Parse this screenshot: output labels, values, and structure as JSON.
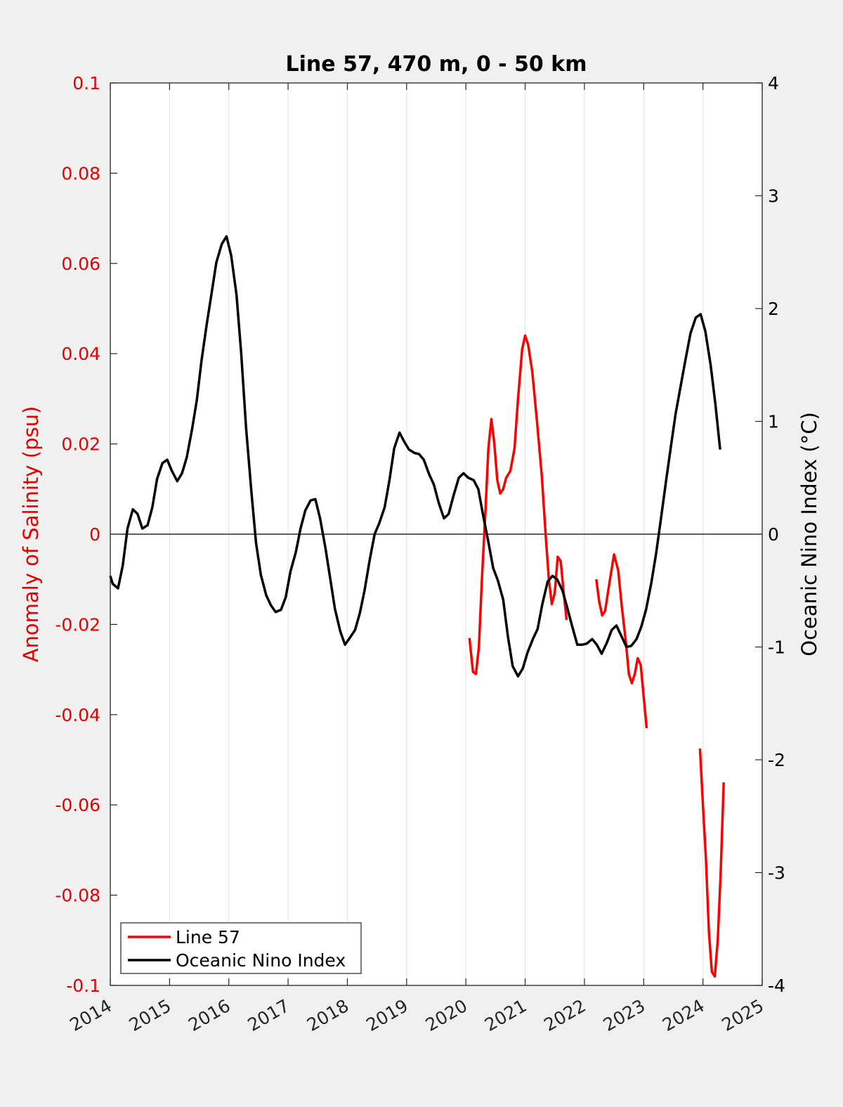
{
  "chart_data": {
    "type": "line",
    "title": "Line 57, 470 m, 0 - 50 km",
    "xlim": [
      2014,
      2025
    ],
    "x_ticks": [
      "2014",
      "2015",
      "2016",
      "2017",
      "2018",
      "2019",
      "2020",
      "2021",
      "2022",
      "2023",
      "2024",
      "2025"
    ],
    "grid": "vertical",
    "ylabel_left": "Anomaly of Salinity (psu)",
    "ylim_left": [
      -0.1,
      0.1
    ],
    "y_ticks_left": [
      "0.1",
      "0.08",
      "0.06",
      "0.04",
      "0.02",
      "0",
      "-0.02",
      "-0.04",
      "-0.06",
      "-0.08",
      "-0.1"
    ],
    "ylabel_right": "Oceanic Nino Index (°C)",
    "ylim_right": [
      -4,
      4
    ],
    "y_ticks_right": [
      "4",
      "3",
      "2",
      "1",
      "0",
      "-1",
      "-2",
      "-3",
      "-4"
    ],
    "legend_position": "bottom-left",
    "colors": {
      "salinity": "#ff0000",
      "oni": "#000000"
    },
    "series": [
      {
        "name": "Line 57",
        "axis": "left",
        "segments": [
          [
            [
              2020.06,
              -0.023
            ],
            [
              2020.12,
              -0.0305
            ],
            [
              2020.17,
              -0.031
            ],
            [
              2020.22,
              -0.025
            ],
            [
              2020.27,
              -0.01
            ],
            [
              2020.33,
              0.005
            ],
            [
              2020.38,
              0.019
            ],
            [
              2020.43,
              0.0255
            ],
            [
              2020.48,
              0.02
            ],
            [
              2020.53,
              0.012
            ],
            [
              2020.58,
              0.009
            ],
            [
              2020.63,
              0.01
            ],
            [
              2020.68,
              0.0125
            ],
            [
              2020.75,
              0.014
            ],
            [
              2020.82,
              0.019
            ],
            [
              2020.88,
              0.03
            ],
            [
              2020.95,
              0.041
            ],
            [
              2021.0,
              0.044
            ],
            [
              2021.05,
              0.042
            ],
            [
              2021.12,
              0.036
            ],
            [
              2021.2,
              0.025
            ],
            [
              2021.28,
              0.013
            ],
            [
              2021.35,
              -0.001
            ],
            [
              2021.4,
              -0.01
            ],
            [
              2021.45,
              -0.0155
            ],
            [
              2021.5,
              -0.013
            ],
            [
              2021.55,
              -0.005
            ],
            [
              2021.6,
              -0.006
            ],
            [
              2021.65,
              -0.013
            ],
            [
              2021.7,
              -0.019
            ]
          ],
          [
            [
              2022.2,
              -0.01
            ],
            [
              2022.25,
              -0.015
            ],
            [
              2022.3,
              -0.018
            ],
            [
              2022.35,
              -0.017
            ],
            [
              2022.42,
              -0.011
            ],
            [
              2022.5,
              -0.0045
            ],
            [
              2022.57,
              -0.008
            ],
            [
              2022.63,
              -0.016
            ],
            [
              2022.7,
              -0.024
            ],
            [
              2022.75,
              -0.031
            ],
            [
              2022.8,
              -0.033
            ],
            [
              2022.85,
              -0.031
            ],
            [
              2022.9,
              -0.0275
            ],
            [
              2022.95,
              -0.029
            ],
            [
              2023.0,
              -0.036
            ],
            [
              2023.05,
              -0.043
            ]
          ],
          [
            [
              2023.95,
              -0.0475
            ],
            [
              2024.0,
              -0.06
            ],
            [
              2024.05,
              -0.072
            ],
            [
              2024.1,
              -0.088
            ],
            [
              2024.15,
              -0.097
            ],
            [
              2024.2,
              -0.098
            ],
            [
              2024.25,
              -0.09
            ],
            [
              2024.3,
              -0.075
            ],
            [
              2024.35,
              -0.055
            ]
          ]
        ]
      },
      {
        "name": "Oceanic Nino Index",
        "axis": "right",
        "segments": [
          [
            [
              2014.0,
              -0.37
            ],
            [
              2014.04,
              -0.44
            ],
            [
              2014.13,
              -0.48
            ],
            [
              2014.21,
              -0.28
            ],
            [
              2014.29,
              0.05
            ],
            [
              2014.38,
              0.22
            ],
            [
              2014.46,
              0.18
            ],
            [
              2014.54,
              0.05
            ],
            [
              2014.63,
              0.08
            ],
            [
              2014.71,
              0.24
            ],
            [
              2014.79,
              0.49
            ],
            [
              2014.88,
              0.63
            ],
            [
              2014.96,
              0.66
            ],
            [
              2015.04,
              0.56
            ],
            [
              2015.13,
              0.47
            ],
            [
              2015.21,
              0.54
            ],
            [
              2015.29,
              0.68
            ],
            [
              2015.38,
              0.93
            ],
            [
              2015.46,
              1.19
            ],
            [
              2015.54,
              1.54
            ],
            [
              2015.63,
              1.87
            ],
            [
              2015.71,
              2.14
            ],
            [
              2015.79,
              2.41
            ],
            [
              2015.88,
              2.57
            ],
            [
              2015.96,
              2.64
            ],
            [
              2016.04,
              2.47
            ],
            [
              2016.13,
              2.12
            ],
            [
              2016.21,
              1.6
            ],
            [
              2016.29,
              0.95
            ],
            [
              2016.38,
              0.38
            ],
            [
              2016.46,
              -0.08
            ],
            [
              2016.54,
              -0.36
            ],
            [
              2016.63,
              -0.54
            ],
            [
              2016.71,
              -0.63
            ],
            [
              2016.79,
              -0.69
            ],
            [
              2016.88,
              -0.67
            ],
            [
              2016.96,
              -0.56
            ],
            [
              2017.04,
              -0.33
            ],
            [
              2017.13,
              -0.16
            ],
            [
              2017.21,
              0.05
            ],
            [
              2017.29,
              0.21
            ],
            [
              2017.38,
              0.3
            ],
            [
              2017.46,
              0.31
            ],
            [
              2017.54,
              0.14
            ],
            [
              2017.63,
              -0.12
            ],
            [
              2017.71,
              -0.39
            ],
            [
              2017.79,
              -0.66
            ],
            [
              2017.88,
              -0.86
            ],
            [
              2017.96,
              -0.98
            ],
            [
              2018.04,
              -0.92
            ],
            [
              2018.13,
              -0.85
            ],
            [
              2018.21,
              -0.7
            ],
            [
              2018.29,
              -0.5
            ],
            [
              2018.38,
              -0.22
            ],
            [
              2018.46,
              0.0
            ],
            [
              2018.54,
              0.1
            ],
            [
              2018.63,
              0.24
            ],
            [
              2018.71,
              0.48
            ],
            [
              2018.79,
              0.76
            ],
            [
              2018.88,
              0.9
            ],
            [
              2018.96,
              0.82
            ],
            [
              2019.04,
              0.75
            ],
            [
              2019.13,
              0.72
            ],
            [
              2019.21,
              0.71
            ],
            [
              2019.29,
              0.66
            ],
            [
              2019.38,
              0.53
            ],
            [
              2019.46,
              0.44
            ],
            [
              2019.54,
              0.28
            ],
            [
              2019.63,
              0.14
            ],
            [
              2019.71,
              0.18
            ],
            [
              2019.79,
              0.34
            ],
            [
              2019.88,
              0.5
            ],
            [
              2019.96,
              0.54
            ],
            [
              2020.04,
              0.5
            ],
            [
              2020.13,
              0.48
            ],
            [
              2020.21,
              0.4
            ],
            [
              2020.29,
              0.17
            ],
            [
              2020.38,
              -0.07
            ],
            [
              2020.46,
              -0.3
            ],
            [
              2020.54,
              -0.41
            ],
            [
              2020.63,
              -0.58
            ],
            [
              2020.71,
              -0.91
            ],
            [
              2020.79,
              -1.17
            ],
            [
              2020.88,
              -1.26
            ],
            [
              2020.96,
              -1.19
            ],
            [
              2021.04,
              -1.05
            ],
            [
              2021.13,
              -0.93
            ],
            [
              2021.21,
              -0.84
            ],
            [
              2021.29,
              -0.62
            ],
            [
              2021.38,
              -0.42
            ],
            [
              2021.46,
              -0.37
            ],
            [
              2021.54,
              -0.4
            ],
            [
              2021.63,
              -0.5
            ],
            [
              2021.71,
              -0.65
            ],
            [
              2021.79,
              -0.81
            ],
            [
              2021.88,
              -0.98
            ],
            [
              2021.96,
              -0.98
            ],
            [
              2022.04,
              -0.97
            ],
            [
              2022.13,
              -0.93
            ],
            [
              2022.21,
              -0.98
            ],
            [
              2022.29,
              -1.06
            ],
            [
              2022.38,
              -0.96
            ],
            [
              2022.46,
              -0.85
            ],
            [
              2022.54,
              -0.81
            ],
            [
              2022.63,
              -0.91
            ],
            [
              2022.71,
              -1.0
            ],
            [
              2022.79,
              -0.99
            ],
            [
              2022.88,
              -0.93
            ],
            [
              2022.96,
              -0.82
            ],
            [
              2023.04,
              -0.67
            ],
            [
              2023.13,
              -0.43
            ],
            [
              2023.21,
              -0.17
            ],
            [
              2023.29,
              0.13
            ],
            [
              2023.38,
              0.48
            ],
            [
              2023.46,
              0.78
            ],
            [
              2023.54,
              1.07
            ],
            [
              2023.63,
              1.33
            ],
            [
              2023.71,
              1.56
            ],
            [
              2023.79,
              1.78
            ],
            [
              2023.88,
              1.92
            ],
            [
              2023.96,
              1.95
            ],
            [
              2024.04,
              1.8
            ],
            [
              2024.13,
              1.5
            ],
            [
              2024.21,
              1.15
            ],
            [
              2024.29,
              0.75
            ]
          ]
        ]
      }
    ]
  }
}
